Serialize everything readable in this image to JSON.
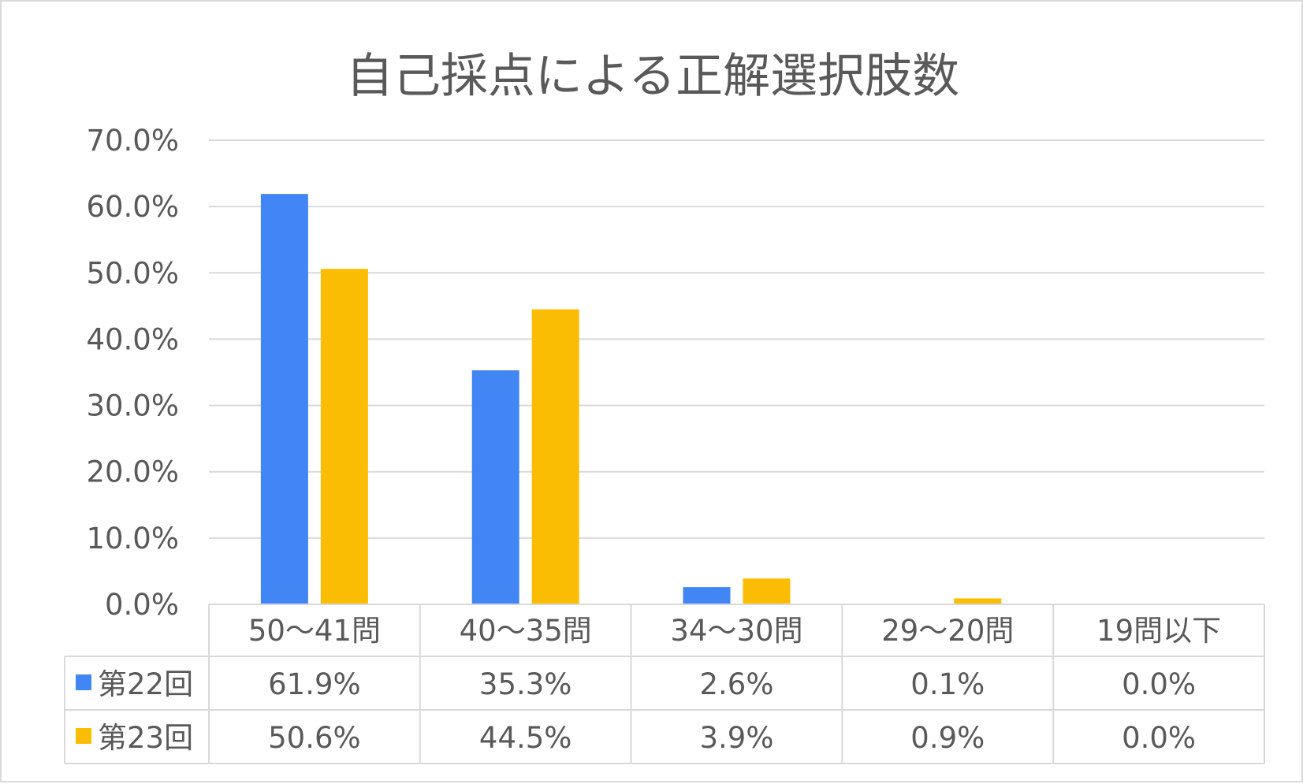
{
  "chart_data": {
    "type": "bar",
    "title": "自己採点による正解選択肢数",
    "categories": [
      "50～41問",
      "40～35問",
      "34～30問",
      "29～20問",
      "19問以下"
    ],
    "series": [
      {
        "name": "第22回",
        "color": "#4285f4",
        "values": [
          61.9,
          35.3,
          2.6,
          0.1,
          0.0
        ],
        "labels": [
          "61.9%",
          "35.3%",
          "2.6%",
          "0.1%",
          "0.0%"
        ]
      },
      {
        "name": "第23回",
        "color": "#fbbc04",
        "values": [
          50.6,
          44.5,
          3.9,
          0.9,
          0.0
        ],
        "labels": [
          "50.6%",
          "44.5%",
          "3.9%",
          "0.9%",
          "0.0%"
        ]
      }
    ],
    "ylim": [
      0,
      70
    ],
    "yticks": [
      "0.0%",
      "10.0%",
      "20.0%",
      "30.0%",
      "40.0%",
      "50.0%",
      "60.0%",
      "70.0%"
    ],
    "grid": true,
    "legend": "data-table",
    "data_table": true
  }
}
